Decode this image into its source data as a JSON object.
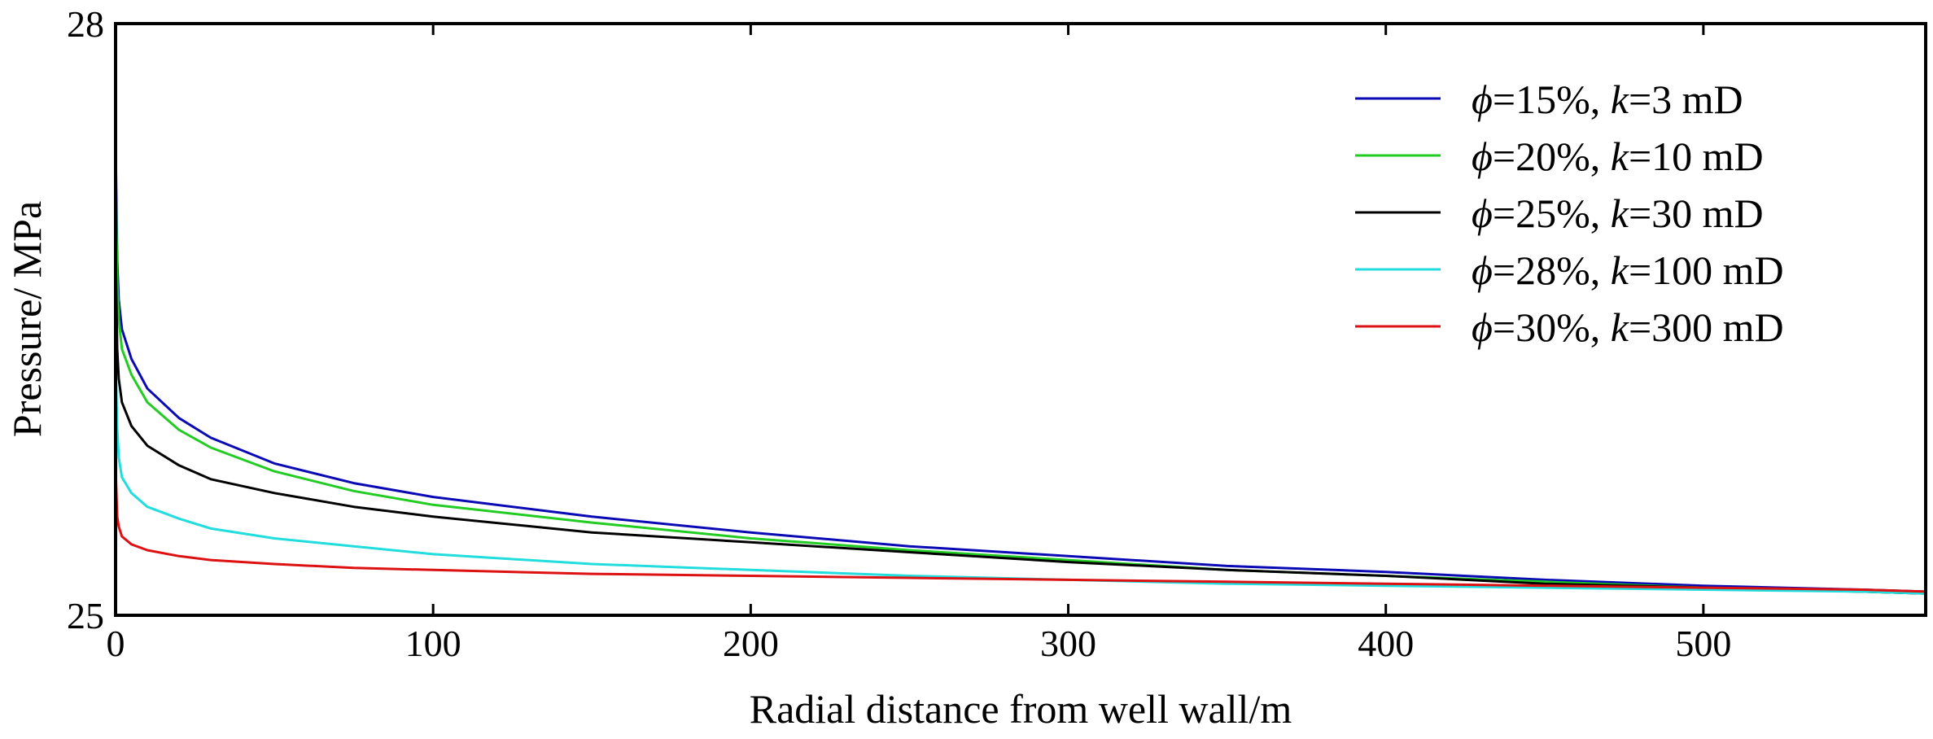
{
  "chart_data": {
    "type": "line",
    "title": "",
    "xlabel": "Radial distance from well wall/m",
    "ylabel": "Pressure/ MPa",
    "xlim": [
      0,
      570
    ],
    "ylim": [
      25,
      28
    ],
    "xticks": [
      0,
      100,
      200,
      300,
      400,
      500
    ],
    "yticks": [
      25,
      28
    ],
    "grid": false,
    "legend_position": "top-right",
    "series": [
      {
        "name": "ϕ=15%, k=3 mD",
        "legend": {
          "sym": "ϕ",
          "eq1": "=15%, ",
          "kvar": "k",
          "eq2": "=3 mD"
        },
        "color": "#0a0ab4",
        "x": [
          0,
          0.5,
          1,
          2,
          5,
          10,
          20,
          30,
          50,
          75,
          100,
          150,
          200,
          250,
          300,
          350,
          400,
          450,
          500,
          550,
          570
        ],
        "y": [
          27.4,
          26.8,
          26.6,
          26.45,
          26.3,
          26.15,
          26.0,
          25.9,
          25.77,
          25.67,
          25.6,
          25.5,
          25.42,
          25.35,
          25.3,
          25.25,
          25.22,
          25.18,
          25.15,
          25.13,
          25.12
        ]
      },
      {
        "name": "ϕ=20%, k=10 mD",
        "legend": {
          "sym": "ϕ",
          "eq1": "=20%, ",
          "kvar": "k",
          "eq2": "=10 mD"
        },
        "color": "#22cc22",
        "x": [
          0,
          0.5,
          1,
          2,
          5,
          10,
          20,
          30,
          50,
          75,
          100,
          150,
          200,
          250,
          300,
          350,
          400,
          450,
          500,
          550,
          570
        ],
        "y": [
          27.25,
          26.7,
          26.5,
          26.35,
          26.22,
          26.08,
          25.94,
          25.85,
          25.73,
          25.63,
          25.56,
          25.47,
          25.39,
          25.33,
          25.28,
          25.23,
          25.2,
          25.17,
          25.14,
          25.12,
          25.11
        ]
      },
      {
        "name": "ϕ=25%, k=30 mD",
        "legend": {
          "sym": "ϕ",
          "eq1": "=25%, ",
          "kvar": "k",
          "eq2": "=30 mD"
        },
        "color": "#000000",
        "x": [
          0,
          0.5,
          1,
          2,
          5,
          10,
          20,
          30,
          50,
          75,
          100,
          150,
          200,
          250,
          300,
          350,
          400,
          450,
          500,
          550,
          570
        ],
        "y": [
          26.85,
          26.35,
          26.2,
          26.08,
          25.96,
          25.86,
          25.76,
          25.69,
          25.62,
          25.55,
          25.5,
          25.42,
          25.37,
          25.32,
          25.27,
          25.23,
          25.2,
          25.16,
          25.14,
          25.12,
          25.11
        ]
      },
      {
        "name": "ϕ=28%, k=100 mD",
        "legend": {
          "sym": "ϕ",
          "eq1": "=28%, ",
          "kvar": "k",
          "eq2": "=100 mD"
        },
        "color": "#22dddd",
        "x": [
          0,
          0.5,
          1,
          2,
          5,
          10,
          20,
          30,
          50,
          75,
          100,
          150,
          200,
          250,
          300,
          350,
          400,
          450,
          500,
          550,
          570
        ],
        "y": [
          26.3,
          25.95,
          25.8,
          25.7,
          25.62,
          25.55,
          25.49,
          25.44,
          25.39,
          25.35,
          25.31,
          25.26,
          25.23,
          25.2,
          25.18,
          25.16,
          25.15,
          25.14,
          25.13,
          25.12,
          25.11
        ]
      },
      {
        "name": "ϕ=30%, k=300 mD",
        "legend": {
          "sym": "ϕ",
          "eq1": "=30%, ",
          "kvar": "k",
          "eq2": "=300 mD"
        },
        "color": "#dd1111",
        "x": [
          0,
          0.5,
          1,
          2,
          5,
          10,
          20,
          30,
          50,
          75,
          100,
          150,
          200,
          250,
          300,
          350,
          400,
          450,
          500,
          550,
          570
        ],
        "y": [
          25.75,
          25.5,
          25.45,
          25.4,
          25.36,
          25.33,
          25.3,
          25.28,
          25.26,
          25.24,
          25.23,
          25.21,
          25.2,
          25.19,
          25.18,
          25.17,
          25.16,
          25.15,
          25.14,
          25.13,
          25.12
        ]
      }
    ]
  }
}
